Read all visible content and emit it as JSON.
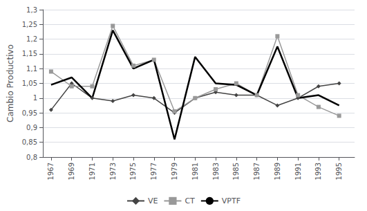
{
  "chart_data": {
    "type": "line",
    "x": [
      1967,
      1969,
      1971,
      1973,
      1975,
      1977,
      1979,
      1981,
      1983,
      1985,
      1987,
      1989,
      1991,
      1993,
      1995
    ],
    "series": [
      {
        "name": "VE",
        "color": "#444444",
        "marker": "diamond",
        "values": [
          0.96,
          1.05,
          1.0,
          0.99,
          1.01,
          1.0,
          0.95,
          1.0,
          1.02,
          1.01,
          1.01,
          0.975,
          1.0,
          1.04,
          1.05
        ]
      },
      {
        "name": "CT",
        "color": "#999999",
        "marker": "square",
        "values": [
          1.09,
          1.04,
          1.04,
          1.245,
          1.11,
          1.13,
          0.955,
          1.0,
          1.03,
          1.05,
          1.01,
          1.21,
          1.01,
          0.97,
          0.94
        ]
      },
      {
        "name": "VPTF",
        "color": "#000000",
        "marker": "none",
        "values": [
          1.045,
          1.07,
          1.0,
          1.23,
          1.1,
          1.13,
          0.86,
          1.14,
          1.05,
          1.045,
          1.01,
          1.175,
          1.0,
          1.01,
          0.975
        ]
      }
    ],
    "ylabel": "Cambio Productivo",
    "xlim": [
      1966.2,
      1996.5
    ],
    "xticks": [
      1967,
      1969,
      1971,
      1973,
      1975,
      1977,
      1979,
      1981,
      1983,
      1985,
      1987,
      1989,
      1991,
      1993,
      1995
    ],
    "ylim": [
      0.8,
      1.3
    ],
    "yticks": [
      {
        "value": 0.8,
        "label": "0,8"
      },
      {
        "value": 0.85,
        "label": "0,85"
      },
      {
        "value": 0.9,
        "label": "0,9"
      },
      {
        "value": 0.95,
        "label": "0,95"
      },
      1,
      {
        "value": 1.05,
        "label": "1,05"
      },
      {
        "value": 1.1,
        "label": "1,1"
      },
      {
        "value": 1.15,
        "label": "1,15"
      },
      {
        "value": 1.2,
        "label": "1,2"
      },
      {
        "value": 1.25,
        "label": "1,25"
      },
      {
        "value": 1.3,
        "label": "1,3"
      }
    ],
    "grid": true,
    "legend": "bottom"
  }
}
